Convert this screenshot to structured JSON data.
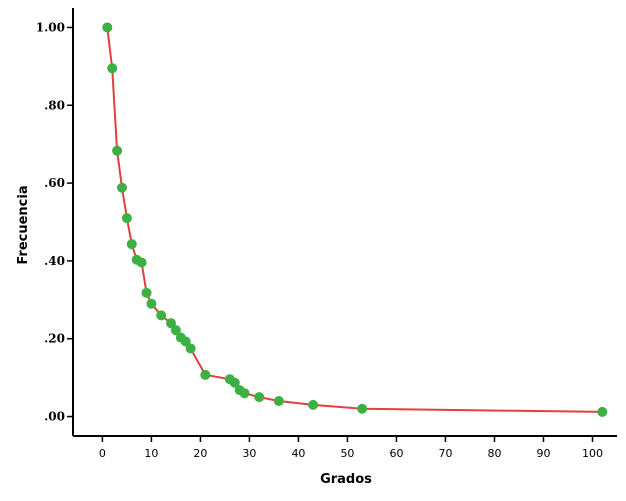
{
  "chart_data": {
    "type": "line",
    "title": "",
    "xlabel": "Grados",
    "ylabel": "Frecuencia",
    "xlim": [
      -6,
      105
    ],
    "ylim": [
      -0.05,
      1.05
    ],
    "xticks": [
      0,
      10,
      20,
      30,
      40,
      50,
      60,
      70,
      80,
      90,
      100
    ],
    "yticks": [
      0,
      0.2,
      0.4,
      0.6,
      0.8,
      1.0
    ],
    "ytick_labels": [
      ".00",
      ".20",
      ".40",
      ".60",
      ".80",
      "1.00"
    ],
    "grid": false,
    "legend": "none",
    "line_color": "#e04040",
    "marker_color": "#3cb043",
    "series": [
      {
        "x": [
          1,
          2,
          3,
          4,
          5,
          6,
          7,
          8,
          9,
          10,
          12,
          14,
          15,
          16,
          17,
          18,
          21,
          26,
          27,
          28,
          29,
          32,
          36,
          43,
          53,
          102
        ],
        "y": [
          1.0,
          0.895,
          0.683,
          0.588,
          0.51,
          0.443,
          0.403,
          0.396,
          0.318,
          0.29,
          0.26,
          0.24,
          0.222,
          0.203,
          0.193,
          0.175,
          0.107,
          0.096,
          0.087,
          0.068,
          0.06,
          0.05,
          0.04,
          0.03,
          0.02,
          0.012
        ]
      }
    ]
  }
}
